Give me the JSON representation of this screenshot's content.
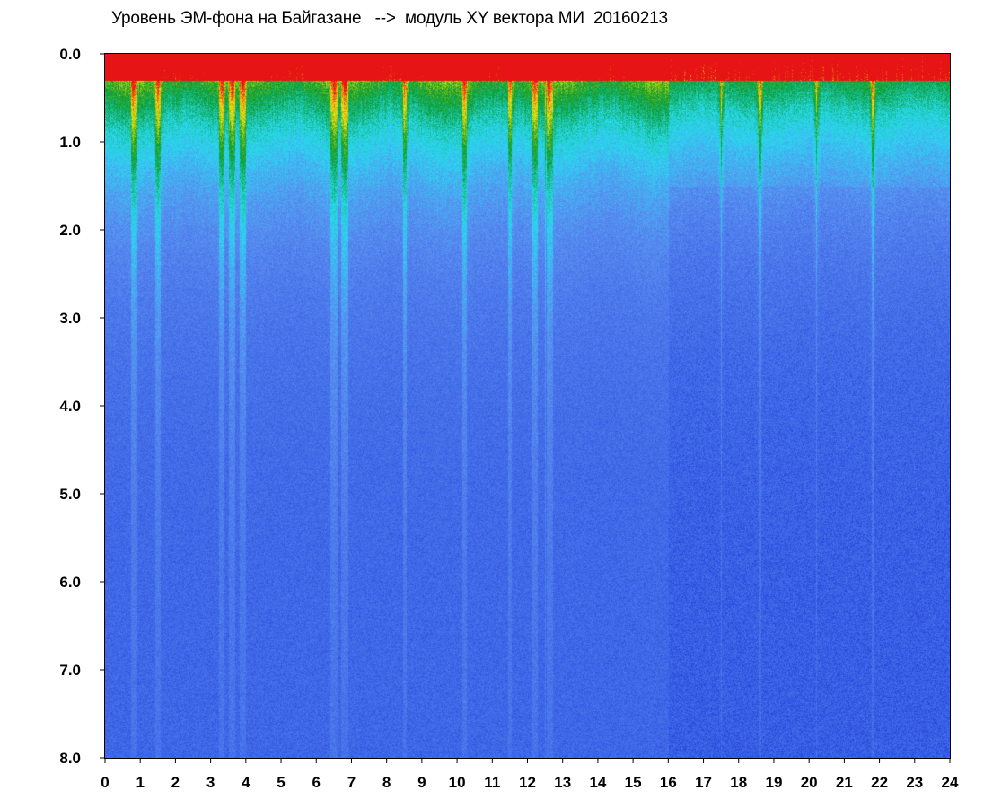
{
  "chart_data": {
    "type": "heatmap",
    "title": "Уровень ЭМ-фона на Байгазане   -->  модуль XY вектора МИ  20160213",
    "xlabel": "",
    "ylabel": "",
    "x_ticks": [
      "0",
      "1",
      "2",
      "3",
      "4",
      "5",
      "6",
      "7",
      "8",
      "9",
      "10",
      "11",
      "12",
      "13",
      "14",
      "15",
      "16",
      "17",
      "18",
      "19",
      "20",
      "21",
      "22",
      "23",
      "24"
    ],
    "y_ticks": [
      "0.0",
      "1.0",
      "2.0",
      "3.0",
      "4.0",
      "5.0",
      "6.0",
      "7.0",
      "8.0"
    ],
    "xlim": [
      0,
      24
    ],
    "ylim": [
      0,
      8
    ],
    "y_inverted": true,
    "grid": false,
    "colorscale": [
      "#1428d2",
      "#3c64e6",
      "#5a8cf0",
      "#28dcf0",
      "#0a9a2a",
      "#f0e614",
      "#e61414"
    ],
    "features": {
      "high_intensity_band_top": 0.3,
      "decay_depth": 1.3,
      "vertical_streaks_hours": [
        0.8,
        1.5,
        3.3,
        3.6,
        3.9,
        6.5,
        6.8,
        8.5,
        10.2,
        11.5,
        12.2,
        12.6,
        17.5,
        18.6,
        20.2,
        21.8
      ],
      "quiet_region_hours": [
        16,
        24
      ]
    }
  }
}
